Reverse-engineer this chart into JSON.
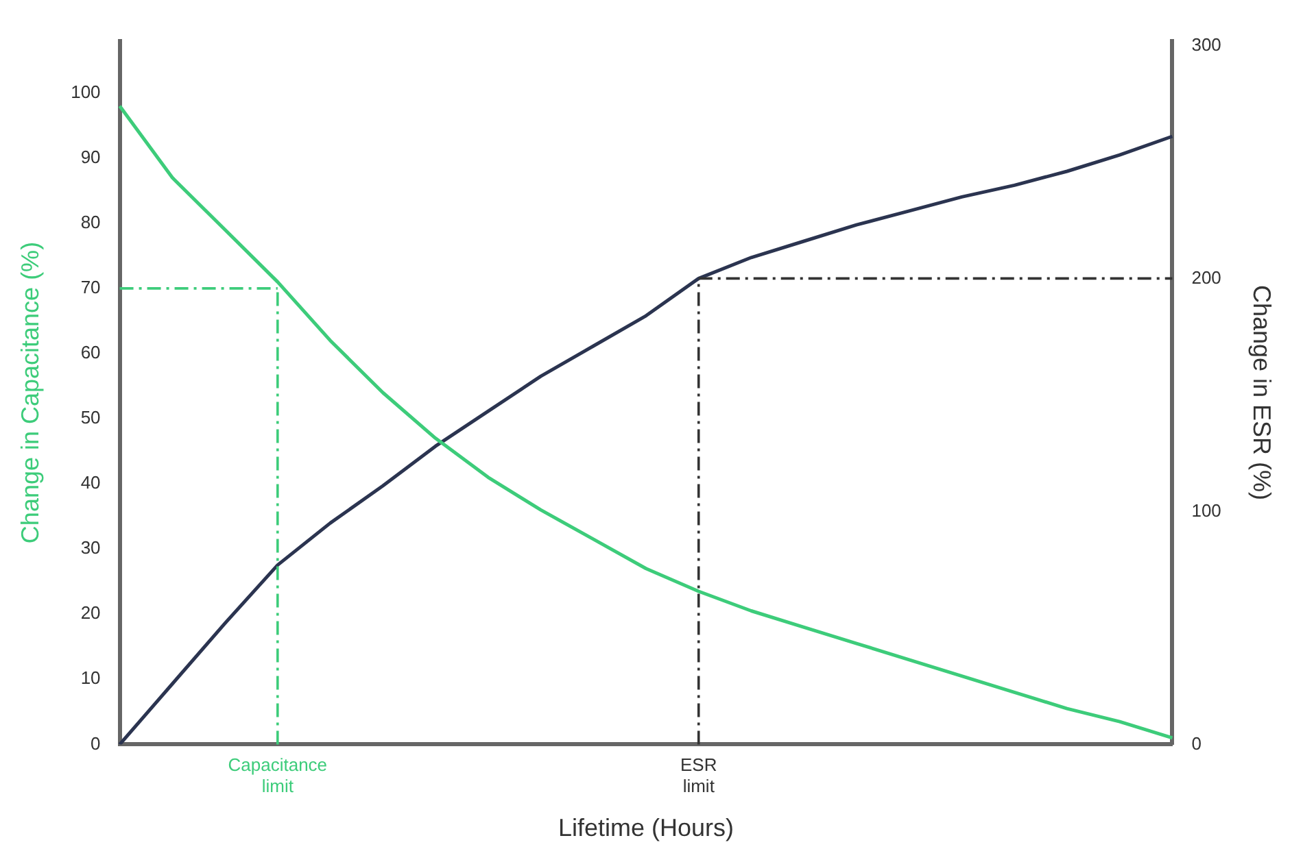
{
  "chart_data": {
    "type": "line",
    "xlabel": "Lifetime (Hours)",
    "ylabel": "Change in Capacitance (%)",
    "y2label": "Change in ESR (%)",
    "categories": [
      null,
      null,
      null,
      "Capacitance limit",
      null,
      null,
      null,
      null,
      null,
      null,
      null,
      "ESR limit",
      null,
      null,
      null,
      null,
      null,
      null,
      null,
      null,
      null
    ],
    "series": [
      {
        "color": "#3dcc7a",
        "values": [
          98,
          87,
          79,
          71,
          62,
          54,
          47,
          41,
          36,
          31.5,
          27,
          23.5,
          20.5,
          18,
          15.5,
          13,
          10.5,
          8,
          5.5,
          3.5,
          1
        ]
      },
      {
        "color": "#2b3450",
        "axis": "y2",
        "values": [
          0,
          26,
          52,
          77,
          95,
          111,
          128,
          143,
          158,
          171,
          184,
          200,
          209,
          216,
          223,
          229,
          235,
          240,
          246,
          253,
          261
        ]
      }
    ],
    "ylim": [
      0,
      108
    ],
    "yticks": [
      0,
      10,
      20,
      30,
      40,
      50,
      60,
      70,
      80,
      90,
      100
    ],
    "y2lim": [
      0,
      302
    ],
    "y2ticks": [
      0,
      100,
      200,
      300
    ],
    "ref_lines": [
      {
        "axis": "y",
        "value": 70,
        "color": "#3dcc7a",
        "line_style": "dashed"
      },
      {
        "axis": "x",
        "value": "Capacitance limit",
        "color": "#3dcc7a",
        "line_style": "dashed"
      },
      {
        "axis": "y2",
        "value": 200,
        "color": "#333333",
        "line_style": "dashed"
      },
      {
        "axis": "x",
        "value": "ESR limit",
        "color": "#333333",
        "line_style": "dashed"
      }
    ],
    "grid": false,
    "legend": false,
    "marker": "none",
    "line_style": "solid"
  }
}
